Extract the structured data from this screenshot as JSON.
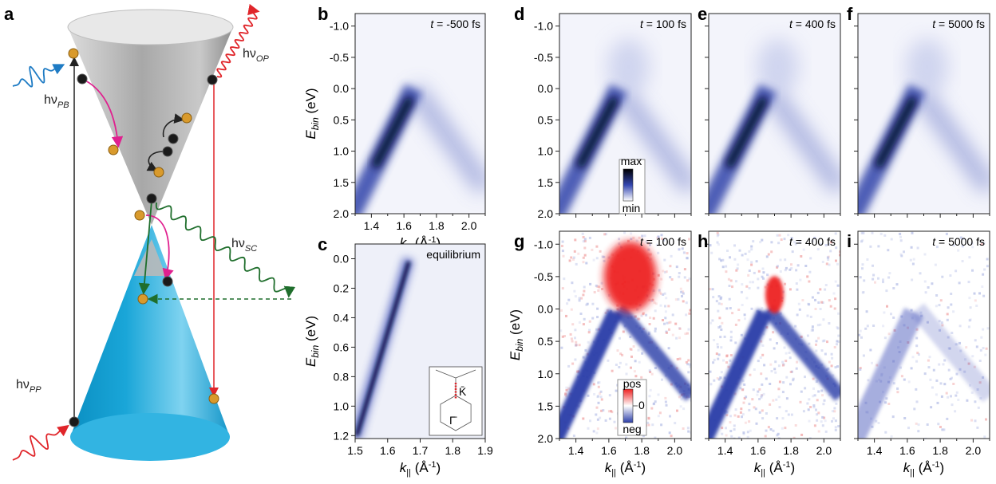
{
  "figure": {
    "panel_letters": [
      "a",
      "b",
      "c",
      "d",
      "e",
      "f",
      "g",
      "h",
      "i"
    ],
    "photons": {
      "probe": {
        "main": "hν",
        "sub": "PB"
      },
      "optical": {
        "main": "hν",
        "sub": "OP"
      },
      "scattering": {
        "main": "hν",
        "sub": "SC"
      },
      "pump": {
        "main": "hν",
        "sub": "PP"
      }
    },
    "panels": [
      {
        "letter": "b",
        "time": "-500 fs"
      },
      {
        "letter": "c",
        "time": "equilibrium"
      },
      {
        "letter": "d",
        "time": "100 fs"
      },
      {
        "letter": "e",
        "time": "400 fs"
      },
      {
        "letter": "f",
        "time": "5000 fs"
      },
      {
        "letter": "g",
        "time": "100 fs"
      },
      {
        "letter": "h",
        "time": "400 fs"
      },
      {
        "letter": "i",
        "time": "5000 fs"
      }
    ],
    "time_prefix": "t",
    "time_eq": " = ",
    "ylabel": {
      "main": "E",
      "sub": "bin",
      "unit": " (eV)"
    },
    "xlabel": {
      "main": "k",
      "sub": "||",
      "unit": " (Å",
      "exp": "-1",
      "close": ")"
    },
    "colorbar_intensity": {
      "max": "max",
      "min": "min"
    },
    "colorbar_difference": {
      "pos": "pos",
      "zero": "0",
      "neg": "neg"
    },
    "inset": {
      "upper": "K̄",
      "lower": "Γ̄"
    },
    "colors": {
      "cone_top": "#a9a9a9",
      "cone_bottom": "#1aa3d4",
      "probe": "#1e7bc4",
      "pump": "#e0252a",
      "scatter": "#1f6e2c",
      "magenta": "#e0208f",
      "positive": "#ee2222",
      "negative": "#2c3ea8"
    }
  },
  "chart_data": [
    {
      "panel": "b",
      "type": "heatmap",
      "title": "t = -500 fs",
      "xlabel": "k|| (Å-1)",
      "ylabel": "Ebin (eV)",
      "xlim": [
        1.3,
        2.1
      ],
      "ylim": [
        2.0,
        -1.2
      ],
      "xticks": [
        "1.4",
        "1.6",
        "1.8",
        "2.0"
      ],
      "yticks": [
        "-1.0",
        "-0.5",
        "0.0",
        "0.5",
        "1.0",
        "1.5",
        "2.0"
      ],
      "colorscale": "min-white to max-black via blue"
    },
    {
      "panel": "c",
      "type": "heatmap",
      "title": "equilibrium",
      "xlabel": "k|| (Å-1)",
      "ylabel": "Ebin (eV)",
      "xlim": [
        1.5,
        1.9
      ],
      "ylim": [
        1.22,
        -0.1
      ],
      "xticks": [
        "1.5",
        "1.6",
        "1.7",
        "1.8",
        "1.9"
      ],
      "yticks": [
        "0.0",
        "0.2",
        "0.4",
        "0.6",
        "0.8",
        "1.0",
        "1.2"
      ],
      "inset": "Brillouin zone Γ̄–K̄ cut"
    },
    {
      "panel": "d",
      "type": "heatmap",
      "title": "t = 100 fs",
      "xlim": [
        1.3,
        2.1
      ],
      "ylim": [
        2.0,
        -1.2
      ],
      "yticks": [
        "-1.0",
        "-0.5",
        "0.0",
        "0.5",
        "1.0",
        "1.5",
        "2.0"
      ],
      "colorbar": [
        "max",
        "min"
      ]
    },
    {
      "panel": "e",
      "type": "heatmap",
      "title": "t = 400 fs",
      "xlim": [
        1.3,
        2.1
      ],
      "ylim": [
        2.0,
        -1.2
      ]
    },
    {
      "panel": "f",
      "type": "heatmap",
      "title": "t = 5000 fs",
      "xlim": [
        1.3,
        2.1
      ],
      "ylim": [
        2.0,
        -1.2
      ]
    },
    {
      "panel": "g",
      "type": "heatmap",
      "title": "t = 100 fs",
      "subtype": "difference",
      "xlabel": "k|| (Å-1)",
      "ylabel": "Ebin (eV)",
      "xlim": [
        1.3,
        2.1
      ],
      "ylim": [
        2.0,
        -1.2
      ],
      "xticks": [
        "1.4",
        "1.6",
        "1.8",
        "2.0"
      ],
      "yticks": [
        "-1.0",
        "-0.5",
        "0.0",
        "0.5",
        "1.0",
        "1.5",
        "2.0"
      ],
      "colorbar": [
        "pos",
        "0",
        "neg"
      ]
    },
    {
      "panel": "h",
      "type": "heatmap",
      "title": "t = 400 fs",
      "subtype": "difference",
      "xlabel": "k|| (Å-1)",
      "xlim": [
        1.3,
        2.1
      ],
      "ylim": [
        2.0,
        -1.2
      ],
      "xticks": [
        "1.4",
        "1.6",
        "1.8",
        "2.0"
      ]
    },
    {
      "panel": "i",
      "type": "heatmap",
      "title": "t = 5000 fs",
      "subtype": "difference",
      "xlabel": "k|| (Å-1)",
      "xlim": [
        1.3,
        2.1
      ],
      "ylim": [
        2.0,
        -1.2
      ],
      "xticks": [
        "1.4",
        "1.6",
        "1.8",
        "2.0"
      ]
    }
  ]
}
